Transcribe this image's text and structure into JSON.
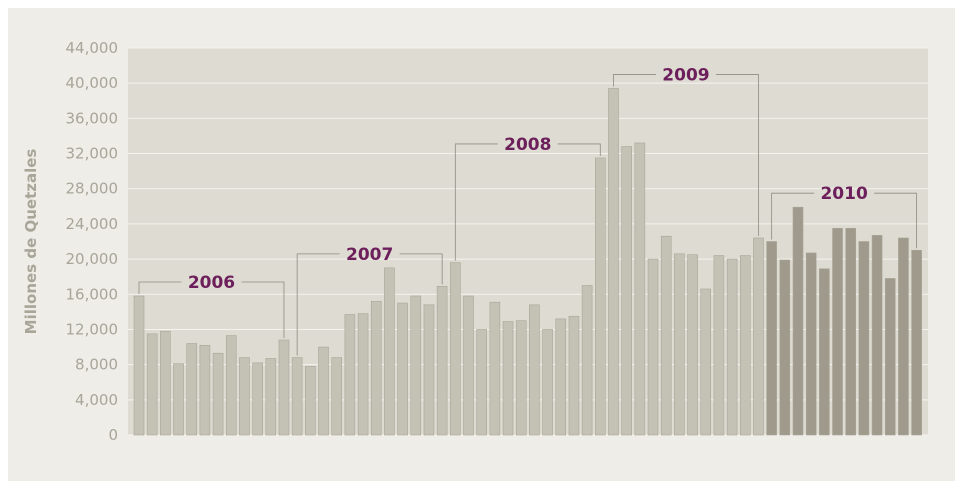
{
  "chart_data": {
    "type": "bar",
    "ylabel": "Millones de Quetzales",
    "ylim": [
      0,
      44000
    ],
    "yticks": [
      "0",
      "4,000",
      "8,000",
      "12,000",
      "16,000",
      "20,000",
      "24,000",
      "28,000",
      "32,000",
      "36,000",
      "40,000",
      "44,000"
    ],
    "grid": true,
    "colors": {
      "bar": "#c4c2b5",
      "bar_2010": "#9f9a8b",
      "bar_stroke": "#a9a698",
      "plot_bg": "#dddbd2",
      "frame_bg": "#eeede7",
      "grid": "#f4f3ee",
      "year_label": "#6d1f5c",
      "tick": "#a8a699"
    },
    "groups": [
      {
        "label": "2006",
        "values": [
          15800,
          11500,
          11800,
          8100,
          10400,
          10200,
          9300,
          11300,
          8800,
          8200,
          8700,
          10800
        ]
      },
      {
        "label": "2007",
        "values": [
          8800,
          7800,
          10000,
          8800,
          13700,
          13800,
          15200,
          19000,
          15000,
          15800,
          14800,
          16900
        ]
      },
      {
        "label": "2008",
        "values": [
          19600,
          15800,
          12000,
          15100,
          12900,
          13000,
          14800,
          12000,
          13200,
          13500,
          17000,
          31500
        ]
      },
      {
        "label": "2009",
        "values": [
          39400,
          32800,
          33200,
          20000,
          22600,
          20600,
          20500,
          16600,
          20400,
          20000,
          20400,
          22400
        ]
      },
      {
        "label": "2010",
        "values": [
          22000,
          19900,
          25900,
          20700,
          18900,
          23500,
          23500,
          22000,
          22700,
          17800,
          22400,
          21000
        ]
      }
    ]
  }
}
